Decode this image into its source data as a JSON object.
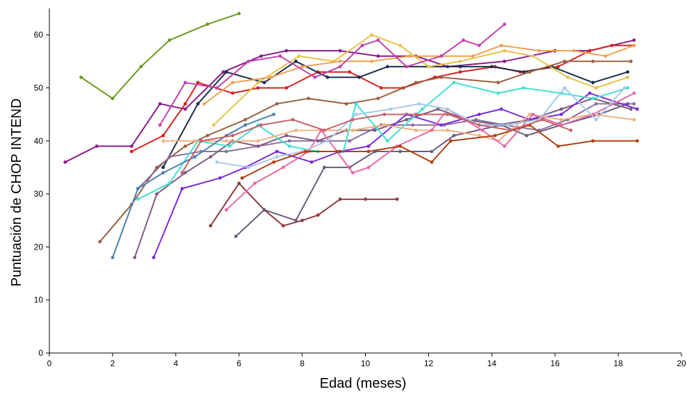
{
  "chart_data": {
    "type": "line",
    "title": "",
    "xlabel": "Edad (meses)",
    "ylabel": "Puntuación de CHOP INTEND",
    "xlim": [
      0,
      20
    ],
    "ylim": [
      0,
      65
    ],
    "xticks": [
      0,
      2,
      4,
      6,
      8,
      10,
      12,
      14,
      16,
      18,
      20
    ],
    "yticks": [
      0,
      10,
      20,
      30,
      40,
      50,
      60
    ],
    "grid": false,
    "legend": "none",
    "series": [
      {
        "color": "#6b9a1f",
        "points": [
          [
            1.0,
            52
          ],
          [
            2.0,
            48
          ],
          [
            2.9,
            54
          ],
          [
            3.8,
            59
          ],
          [
            5.0,
            62
          ],
          [
            6.0,
            64
          ]
        ]
      },
      {
        "color": "#8b1a8b",
        "points": [
          [
            0.5,
            36
          ],
          [
            1.5,
            39
          ],
          [
            2.6,
            39
          ],
          [
            3.5,
            47
          ],
          [
            4.3,
            46
          ],
          [
            5.5,
            53
          ],
          [
            6.7,
            56
          ],
          [
            7.5,
            57
          ],
          [
            9.2,
            57
          ],
          [
            10.4,
            56
          ],
          [
            11.6,
            56
          ],
          [
            12.6,
            54
          ],
          [
            14.4,
            55
          ],
          [
            16.0,
            57
          ],
          [
            17.1,
            57
          ],
          [
            18.5,
            59
          ]
        ]
      },
      {
        "color": "#d62020",
        "points": [
          [
            2.6,
            38
          ],
          [
            3.6,
            41
          ],
          [
            4.3,
            47
          ],
          [
            4.7,
            51
          ],
          [
            5.8,
            49
          ],
          [
            6.6,
            50
          ],
          [
            7.5,
            50
          ],
          [
            8.5,
            53
          ],
          [
            9.5,
            53
          ],
          [
            10.5,
            50
          ],
          [
            11.2,
            50
          ],
          [
            12.2,
            52
          ],
          [
            13.0,
            53
          ],
          [
            14.1,
            54
          ],
          [
            14.9,
            53
          ],
          [
            16.1,
            54
          ],
          [
            17.1,
            57
          ],
          [
            17.8,
            58
          ],
          [
            18.5,
            58
          ]
        ]
      },
      {
        "color": "#1a2e4a",
        "points": [
          [
            3.6,
            35
          ],
          [
            4.7,
            47
          ],
          [
            5.6,
            53
          ],
          [
            6.8,
            51
          ],
          [
            7.8,
            55
          ],
          [
            8.8,
            52
          ],
          [
            9.8,
            52
          ],
          [
            10.7,
            54
          ],
          [
            12.0,
            54
          ],
          [
            13.0,
            54
          ],
          [
            14.0,
            54
          ],
          [
            15.0,
            53
          ],
          [
            15.9,
            54
          ],
          [
            17.2,
            51
          ],
          [
            18.3,
            53
          ]
        ]
      },
      {
        "color": "#e8c04a",
        "points": [
          [
            5.2,
            43
          ],
          [
            6.6,
            51
          ],
          [
            7.9,
            56
          ],
          [
            9.0,
            55
          ],
          [
            10.2,
            60
          ],
          [
            11.1,
            58
          ],
          [
            12.0,
            54
          ],
          [
            13.0,
            55
          ],
          [
            14.4,
            57
          ],
          [
            15.3,
            56
          ],
          [
            16.4,
            52
          ],
          [
            17.3,
            50
          ],
          [
            18.3,
            52
          ]
        ]
      },
      {
        "color": "#f0a050",
        "points": [
          [
            4.9,
            47
          ],
          [
            5.8,
            51
          ],
          [
            7.0,
            52
          ],
          [
            8.0,
            54
          ],
          [
            9.2,
            55
          ],
          [
            10.2,
            55
          ],
          [
            11.4,
            56
          ],
          [
            12.4,
            56
          ],
          [
            13.4,
            56
          ],
          [
            14.3,
            58
          ],
          [
            15.5,
            57
          ],
          [
            16.6,
            57
          ],
          [
            17.6,
            56
          ],
          [
            18.5,
            58
          ]
        ]
      },
      {
        "color": "#c040b0",
        "points": [
          [
            3.5,
            43
          ],
          [
            4.3,
            51
          ],
          [
            5.3,
            50
          ],
          [
            6.3,
            55
          ],
          [
            7.3,
            56
          ],
          [
            8.4,
            52
          ],
          [
            9.2,
            54
          ],
          [
            9.9,
            58
          ],
          [
            10.4,
            59
          ],
          [
            11.3,
            54
          ],
          [
            12.4,
            56
          ],
          [
            13.1,
            59
          ],
          [
            13.6,
            58
          ],
          [
            14.4,
            62
          ]
        ]
      },
      {
        "color": "#9a6040",
        "points": [
          [
            1.6,
            21
          ],
          [
            2.6,
            28
          ],
          [
            3.4,
            35
          ],
          [
            4.3,
            39
          ],
          [
            5.0,
            41
          ],
          [
            6.2,
            44
          ],
          [
            7.2,
            47
          ],
          [
            8.2,
            48
          ],
          [
            9.4,
            47
          ],
          [
            10.4,
            48
          ],
          [
            11.6,
            51
          ],
          [
            12.4,
            52
          ],
          [
            14.2,
            51
          ],
          [
            15.2,
            53
          ],
          [
            16.3,
            55
          ],
          [
            17.2,
            55
          ],
          [
            18.4,
            55
          ]
        ]
      },
      {
        "color": "#8a70a0",
        "points": [
          [
            2.8,
            31
          ],
          [
            3.8,
            37
          ],
          [
            4.8,
            38
          ],
          [
            5.6,
            38
          ],
          [
            6.6,
            39
          ],
          [
            7.6,
            40
          ],
          [
            8.6,
            40
          ],
          [
            9.5,
            40
          ],
          [
            10.5,
            43
          ],
          [
            11.5,
            43
          ],
          [
            12.5,
            43
          ],
          [
            13.5,
            44
          ],
          [
            14.4,
            43
          ],
          [
            15.5,
            42
          ],
          [
            16.4,
            44
          ],
          [
            17.3,
            47
          ],
          [
            18.5,
            47
          ]
        ]
      },
      {
        "color": "#8e3a3a",
        "points": [
          [
            5.1,
            24
          ],
          [
            6.0,
            32
          ],
          [
            6.8,
            27
          ],
          [
            7.4,
            24
          ],
          [
            8.0,
            25
          ],
          [
            8.5,
            26
          ],
          [
            9.2,
            29
          ],
          [
            10.0,
            29
          ],
          [
            11.0,
            29
          ]
        ]
      },
      {
        "color": "#6a5a80",
        "points": [
          [
            5.9,
            22
          ],
          [
            6.8,
            27
          ],
          [
            7.8,
            25
          ],
          [
            8.7,
            35
          ],
          [
            9.5,
            35
          ],
          [
            10.3,
            38
          ],
          [
            11.1,
            38
          ],
          [
            12.1,
            38
          ],
          [
            12.8,
            41
          ],
          [
            14.3,
            43
          ],
          [
            15.1,
            41
          ],
          [
            16.2,
            43
          ],
          [
            17.4,
            45
          ],
          [
            18.3,
            47
          ]
        ]
      },
      {
        "color": "#7e5a7e",
        "points": [
          [
            2.7,
            18
          ],
          [
            3.4,
            30
          ],
          [
            4.3,
            34
          ],
          [
            5.1,
            37
          ],
          [
            5.8,
            40
          ],
          [
            6.6,
            39
          ],
          [
            7.5,
            41
          ],
          [
            8.5,
            40
          ],
          [
            9.4,
            42
          ],
          [
            10.3,
            42
          ],
          [
            11.3,
            44
          ],
          [
            12.3,
            46
          ],
          [
            13.2,
            44
          ],
          [
            14.2,
            43
          ],
          [
            15.2,
            44
          ],
          [
            16.2,
            46
          ],
          [
            17.2,
            48
          ],
          [
            18.4,
            46
          ]
        ]
      },
      {
        "color": "#7a2ae0",
        "points": [
          [
            3.3,
            18
          ],
          [
            4.2,
            31
          ],
          [
            5.4,
            33
          ],
          [
            6.2,
            35
          ],
          [
            7.2,
            38
          ],
          [
            8.3,
            36
          ],
          [
            9.2,
            38
          ],
          [
            10.1,
            39
          ],
          [
            11.3,
            45
          ],
          [
            12.4,
            43
          ],
          [
            13.6,
            45
          ],
          [
            14.3,
            46
          ],
          [
            15.2,
            44
          ],
          [
            16.2,
            45
          ],
          [
            17.1,
            49
          ],
          [
            18.6,
            46
          ]
        ]
      },
      {
        "color": "#40e0d0",
        "points": [
          [
            2.8,
            29
          ],
          [
            3.8,
            32
          ],
          [
            4.7,
            40
          ],
          [
            5.7,
            39
          ],
          [
            6.6,
            43
          ],
          [
            7.6,
            39
          ],
          [
            8.5,
            38
          ],
          [
            9.3,
            38
          ],
          [
            9.7,
            47
          ],
          [
            10.7,
            40
          ],
          [
            11.8,
            46
          ],
          [
            12.8,
            51
          ],
          [
            14.2,
            49
          ],
          [
            15.0,
            50
          ],
          [
            16.2,
            49
          ],
          [
            17.2,
            48
          ],
          [
            18.3,
            50
          ]
        ]
      },
      {
        "color": "#f0b080",
        "points": [
          [
            3.6,
            40
          ],
          [
            4.6,
            40
          ],
          [
            5.6,
            40
          ],
          [
            6.6,
            40
          ],
          [
            7.8,
            42
          ],
          [
            8.6,
            42
          ],
          [
            9.6,
            42
          ],
          [
            10.6,
            43
          ],
          [
            11.6,
            42
          ],
          [
            12.6,
            42
          ],
          [
            13.6,
            41
          ],
          [
            14.2,
            40
          ],
          [
            15.2,
            45
          ],
          [
            16.2,
            44
          ],
          [
            17.2,
            45
          ],
          [
            18.5,
            44
          ]
        ]
      },
      {
        "color": "#e868a8",
        "points": [
          [
            5.6,
            27
          ],
          [
            6.5,
            32
          ],
          [
            7.4,
            35
          ],
          [
            8.2,
            38
          ],
          [
            8.6,
            42
          ],
          [
            9.6,
            34
          ],
          [
            10.1,
            35
          ],
          [
            11.0,
            39
          ],
          [
            12.1,
            42
          ],
          [
            12.6,
            46
          ],
          [
            13.7,
            42
          ],
          [
            14.4,
            39
          ],
          [
            15.3,
            45
          ],
          [
            16.2,
            43
          ],
          [
            17.2,
            45
          ],
          [
            18.5,
            49
          ]
        ]
      },
      {
        "color": "#a8c8e8",
        "points": [
          [
            5.3,
            36
          ],
          [
            6.3,
            35
          ],
          [
            7.2,
            37
          ],
          [
            8.0,
            38
          ],
          [
            8.8,
            40
          ],
          [
            9.7,
            45
          ],
          [
            10.8,
            46
          ],
          [
            11.7,
            47
          ],
          [
            12.6,
            46
          ],
          [
            13.6,
            43
          ],
          [
            14.5,
            43
          ],
          [
            15.5,
            44
          ],
          [
            16.3,
            50
          ],
          [
            17.3,
            44
          ],
          [
            18.2,
            50
          ]
        ]
      },
      {
        "color": "#b04010",
        "points": [
          [
            6.1,
            33
          ],
          [
            7.1,
            36
          ],
          [
            8.1,
            38
          ],
          [
            9.1,
            38
          ],
          [
            10.1,
            38
          ],
          [
            11.1,
            39
          ],
          [
            12.1,
            36
          ],
          [
            12.7,
            40
          ],
          [
            14.1,
            41
          ],
          [
            15.2,
            43
          ],
          [
            16.1,
            39
          ],
          [
            17.2,
            40
          ],
          [
            18.6,
            40
          ]
        ]
      },
      {
        "color": "#4a80b0",
        "points": [
          [
            2.0,
            18
          ],
          [
            2.8,
            31
          ],
          [
            3.6,
            34
          ],
          [
            4.6,
            37
          ],
          [
            5.6,
            41
          ],
          [
            6.2,
            43
          ],
          [
            7.1,
            45
          ]
        ]
      },
      {
        "color": "#c86068",
        "points": [
          [
            4.2,
            34
          ],
          [
            4.8,
            40
          ],
          [
            5.8,
            41
          ],
          [
            6.7,
            43
          ],
          [
            7.7,
            44
          ],
          [
            8.7,
            42
          ],
          [
            9.6,
            44
          ],
          [
            10.6,
            45
          ],
          [
            11.6,
            45
          ],
          [
            12.6,
            45
          ],
          [
            13.6,
            43
          ],
          [
            14.6,
            42
          ],
          [
            15.6,
            44
          ],
          [
            16.5,
            42
          ]
        ]
      }
    ]
  }
}
